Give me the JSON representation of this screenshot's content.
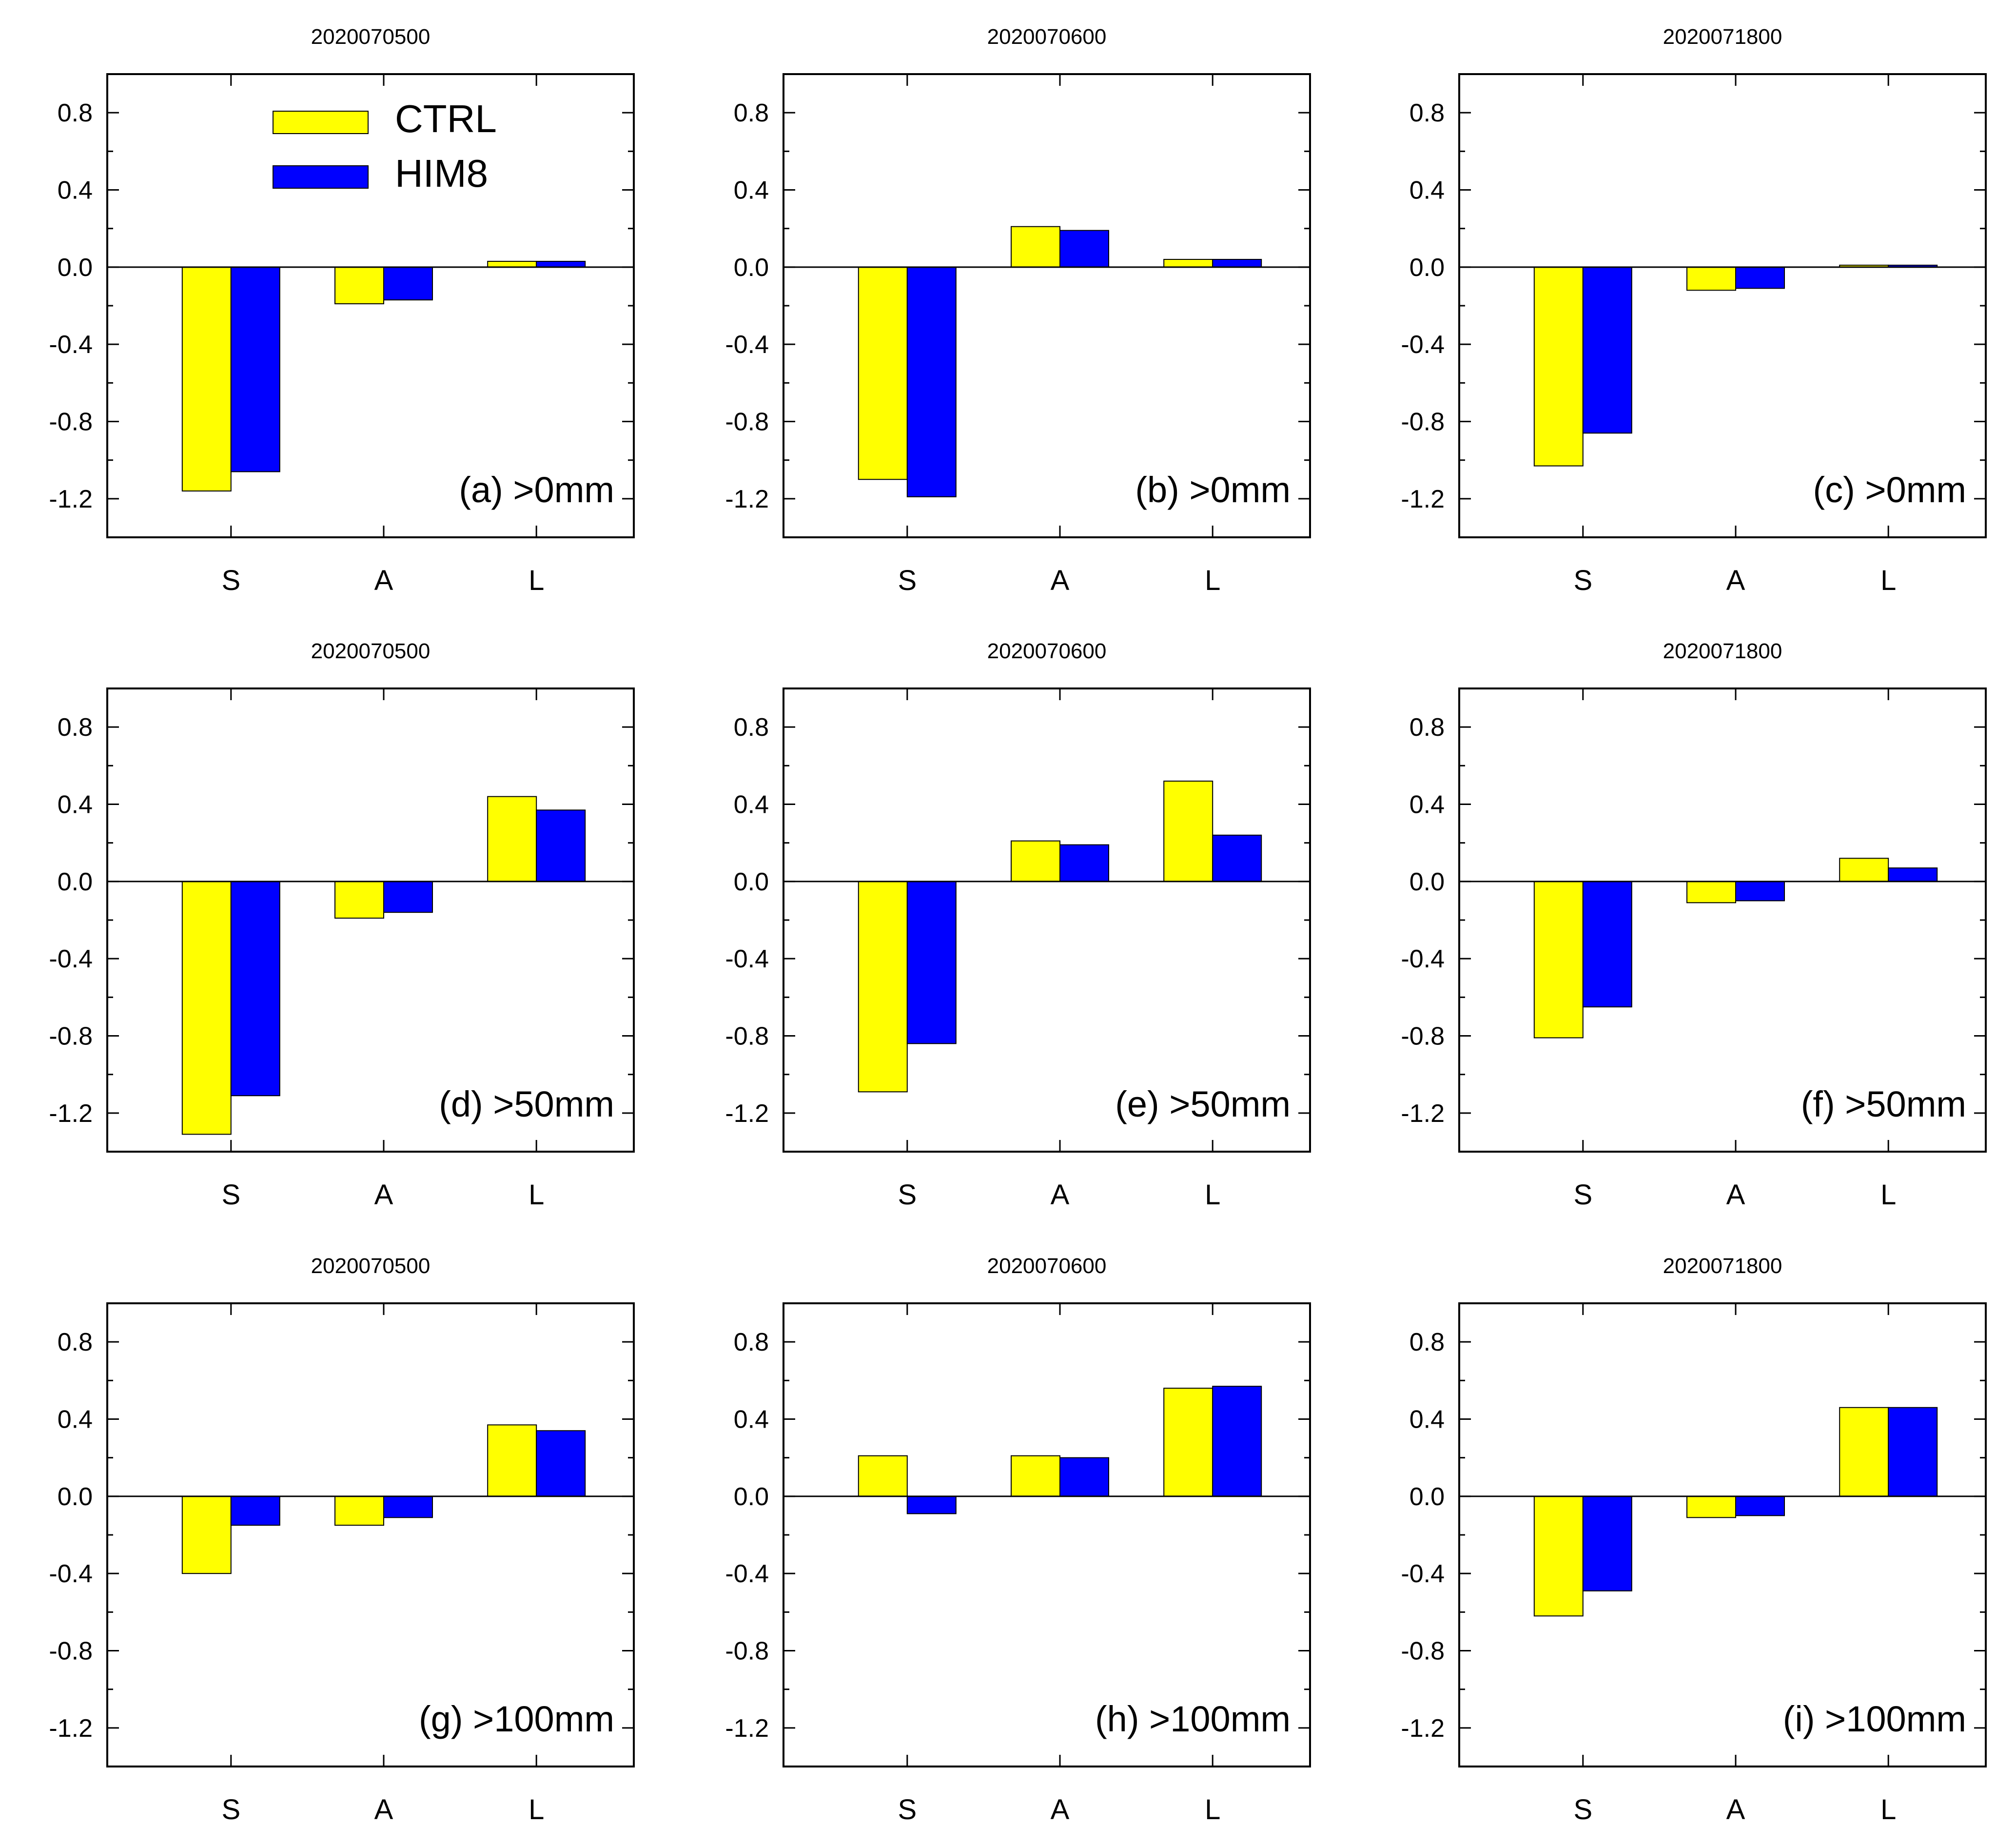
{
  "legend": {
    "entries": [
      {
        "name": "CTRL",
        "color": "#ffff00"
      },
      {
        "name": "HIM8",
        "color": "#0000ff"
      }
    ],
    "placement": "top-left of panel (a)"
  },
  "chart_data": [
    {
      "type": "bar",
      "title": "2020070500",
      "label": "(a) >0mm",
      "categories": [
        "S",
        "A",
        "L"
      ],
      "ylim": [
        -1.4,
        1.0
      ],
      "yticks": [
        "0.8",
        "0.4",
        "0.0",
        "-0.4",
        "-0.8",
        "-1.2"
      ],
      "series": [
        {
          "name": "CTRL",
          "values": [
            -1.16,
            -0.19,
            0.03
          ]
        },
        {
          "name": "HIM8",
          "values": [
            -1.06,
            -0.17,
            0.03
          ]
        }
      ]
    },
    {
      "type": "bar",
      "title": "2020070600",
      "label": "(b) >0mm",
      "categories": [
        "S",
        "A",
        "L"
      ],
      "ylim": [
        -1.4,
        1.0
      ],
      "yticks": [
        "0.8",
        "0.4",
        "0.0",
        "-0.4",
        "-0.8",
        "-1.2"
      ],
      "series": [
        {
          "name": "CTRL",
          "values": [
            -1.1,
            0.21,
            0.04
          ]
        },
        {
          "name": "HIM8",
          "values": [
            -1.19,
            0.19,
            0.04
          ]
        }
      ]
    },
    {
      "type": "bar",
      "title": "2020071800",
      "label": "(c) >0mm",
      "categories": [
        "S",
        "A",
        "L"
      ],
      "ylim": [
        -1.4,
        1.0
      ],
      "yticks": [
        "0.8",
        "0.4",
        "0.0",
        "-0.4",
        "-0.8",
        "-1.2"
      ],
      "series": [
        {
          "name": "CTRL",
          "values": [
            -1.03,
            -0.12,
            0.01
          ]
        },
        {
          "name": "HIM8",
          "values": [
            -0.86,
            -0.11,
            0.01
          ]
        }
      ]
    },
    {
      "type": "bar",
      "title": "2020070500",
      "label": "(d) >50mm",
      "categories": [
        "S",
        "A",
        "L"
      ],
      "ylim": [
        -1.4,
        1.0
      ],
      "yticks": [
        "0.8",
        "0.4",
        "0.0",
        "-0.4",
        "-0.8",
        "-1.2"
      ],
      "series": [
        {
          "name": "CTRL",
          "values": [
            -1.31,
            -0.19,
            0.44
          ]
        },
        {
          "name": "HIM8",
          "values": [
            -1.11,
            -0.16,
            0.37
          ]
        }
      ]
    },
    {
      "type": "bar",
      "title": "2020070600",
      "label": "(e) >50mm",
      "categories": [
        "S",
        "A",
        "L"
      ],
      "ylim": [
        -1.4,
        1.0
      ],
      "yticks": [
        "0.8",
        "0.4",
        "0.0",
        "-0.4",
        "-0.8",
        "-1.2"
      ],
      "series": [
        {
          "name": "CTRL",
          "values": [
            -1.09,
            0.21,
            0.52
          ]
        },
        {
          "name": "HIM8",
          "values": [
            -0.84,
            0.19,
            0.24
          ]
        }
      ]
    },
    {
      "type": "bar",
      "title": "2020071800",
      "label": "(f) >50mm",
      "categories": [
        "S",
        "A",
        "L"
      ],
      "ylim": [
        -1.4,
        1.0
      ],
      "yticks": [
        "0.8",
        "0.4",
        "0.0",
        "-0.4",
        "-0.8",
        "-1.2"
      ],
      "series": [
        {
          "name": "CTRL",
          "values": [
            -0.81,
            -0.11,
            0.12
          ]
        },
        {
          "name": "HIM8",
          "values": [
            -0.65,
            -0.1,
            0.07
          ]
        }
      ]
    },
    {
      "type": "bar",
      "title": "2020070500",
      "label": "(g) >100mm",
      "categories": [
        "S",
        "A",
        "L"
      ],
      "ylim": [
        -1.4,
        1.0
      ],
      "yticks": [
        "0.8",
        "0.4",
        "0.0",
        "-0.4",
        "-0.8",
        "-1.2"
      ],
      "series": [
        {
          "name": "CTRL",
          "values": [
            -0.4,
            -0.15,
            0.37
          ]
        },
        {
          "name": "HIM8",
          "values": [
            -0.15,
            -0.11,
            0.34
          ]
        }
      ]
    },
    {
      "type": "bar",
      "title": "2020070600",
      "label": "(h) >100mm",
      "categories": [
        "S",
        "A",
        "L"
      ],
      "ylim": [
        -1.4,
        1.0
      ],
      "yticks": [
        "0.8",
        "0.4",
        "0.0",
        "-0.4",
        "-0.8",
        "-1.2"
      ],
      "series": [
        {
          "name": "CTRL",
          "values": [
            0.21,
            0.21,
            0.56
          ]
        },
        {
          "name": "HIM8",
          "values": [
            -0.09,
            0.2,
            0.57
          ]
        }
      ]
    },
    {
      "type": "bar",
      "title": "2020071800",
      "label": "(i) >100mm",
      "categories": [
        "S",
        "A",
        "L"
      ],
      "ylim": [
        -1.4,
        1.0
      ],
      "yticks": [
        "0.8",
        "0.4",
        "0.0",
        "-0.4",
        "-0.8",
        "-1.2"
      ],
      "series": [
        {
          "name": "CTRL",
          "values": [
            -0.62,
            -0.11,
            0.46
          ]
        },
        {
          "name": "HIM8",
          "values": [
            -0.49,
            -0.1,
            0.46
          ]
        }
      ]
    }
  ]
}
